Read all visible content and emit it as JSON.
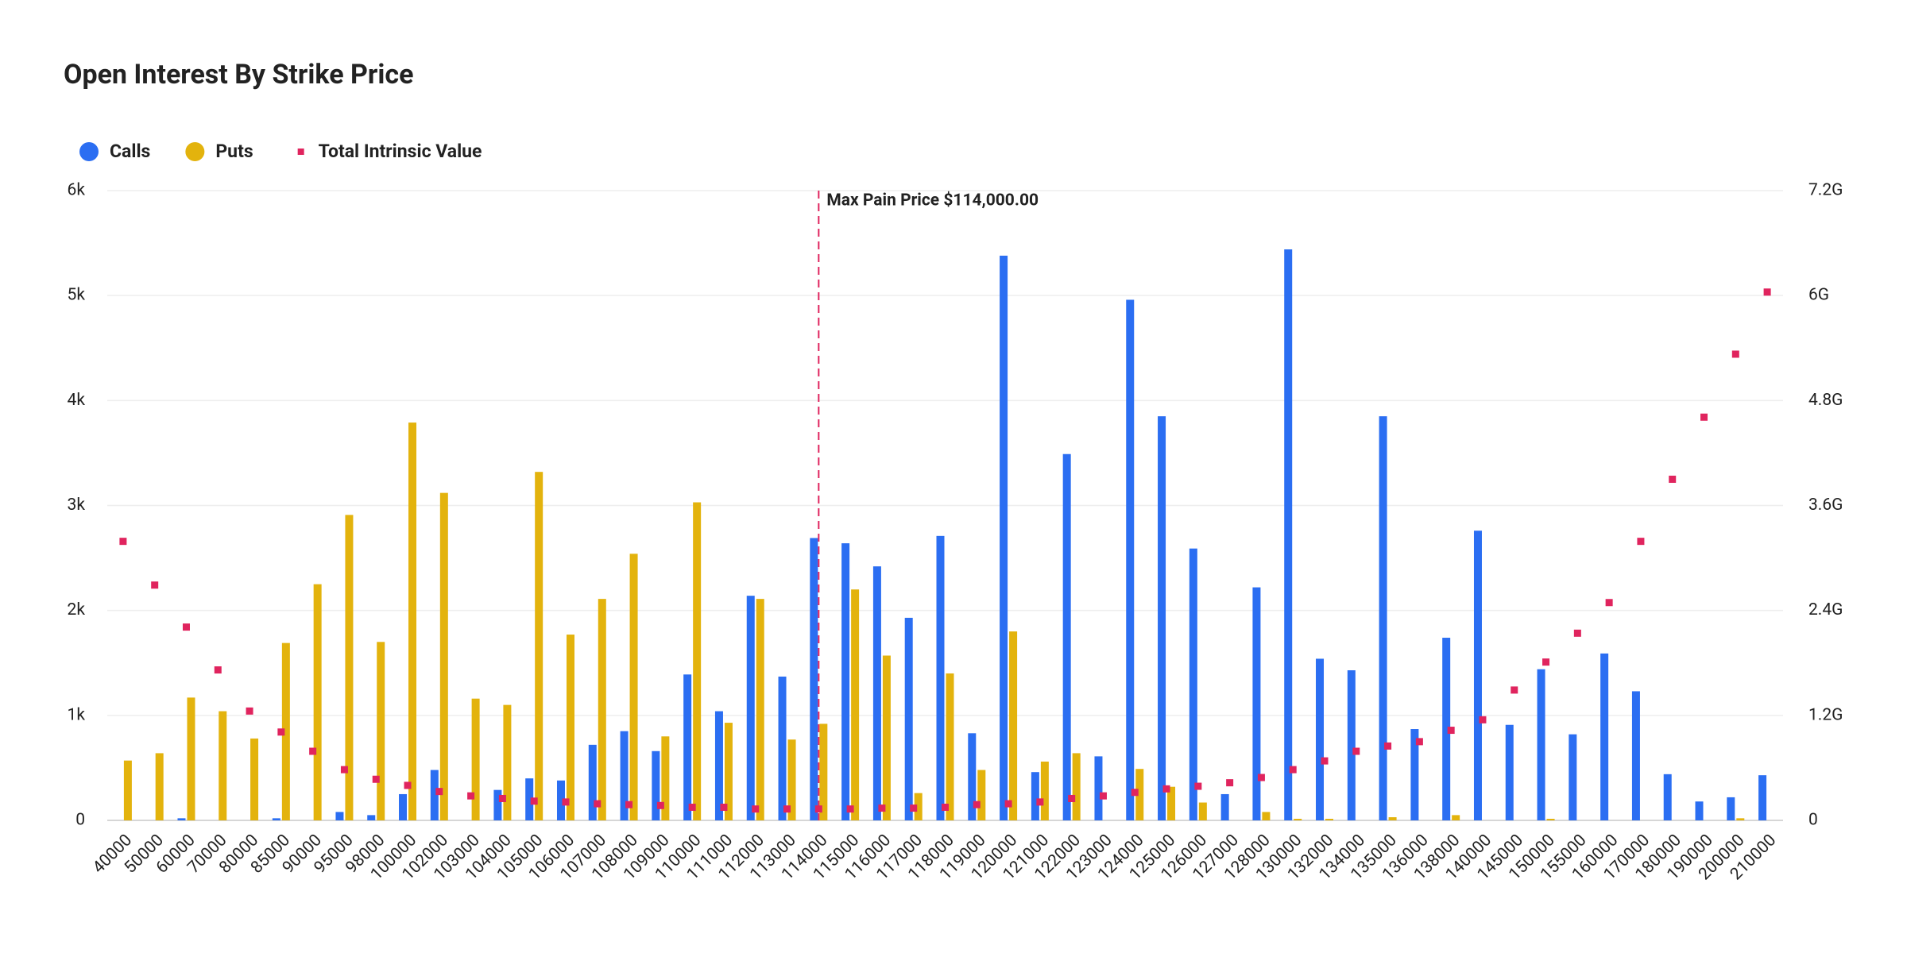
{
  "chart_data": {
    "type": "bar",
    "title": "Open Interest By Strike Price",
    "categories": [
      "40000",
      "50000",
      "60000",
      "70000",
      "80000",
      "85000",
      "90000",
      "95000",
      "98000",
      "100000",
      "102000",
      "103000",
      "104000",
      "105000",
      "106000",
      "107000",
      "108000",
      "109000",
      "110000",
      "111000",
      "112000",
      "113000",
      "114000",
      "115000",
      "116000",
      "117000",
      "118000",
      "119000",
      "120000",
      "121000",
      "122000",
      "123000",
      "124000",
      "125000",
      "126000",
      "127000",
      "128000",
      "130000",
      "132000",
      "134000",
      "135000",
      "136000",
      "138000",
      "140000",
      "145000",
      "150000",
      "155000",
      "160000",
      "170000",
      "180000",
      "190000",
      "200000",
      "210000"
    ],
    "series": [
      {
        "name": "Calls",
        "type": "bar",
        "color": "#2b6ef2",
        "values": [
          0,
          0,
          20,
          0,
          0,
          20,
          0,
          80,
          50,
          250,
          480,
          0,
          290,
          400,
          380,
          720,
          850,
          660,
          1390,
          1040,
          2140,
          1370,
          2690,
          2640,
          2420,
          1930,
          2710,
          830,
          5380,
          460,
          3490,
          610,
          4960,
          3850,
          2590,
          250,
          2220,
          5440,
          1540,
          1430,
          3850,
          870,
          1740,
          2760,
          910,
          1440,
          820,
          1590,
          1230,
          440,
          180,
          220,
          430
        ]
      },
      {
        "name": "Puts",
        "type": "bar",
        "color": "#e3b30d",
        "values": [
          570,
          640,
          1170,
          1040,
          780,
          1690,
          2250,
          2910,
          1700,
          3790,
          3120,
          1160,
          1100,
          3320,
          1770,
          2110,
          2540,
          800,
          3030,
          930,
          2110,
          770,
          920,
          2200,
          1570,
          260,
          1400,
          480,
          1800,
          560,
          640,
          0,
          490,
          320,
          170,
          0,
          80,
          15,
          15,
          0,
          30,
          0,
          50,
          0,
          0,
          15,
          0,
          0,
          0,
          0,
          0,
          20,
          0
        ]
      },
      {
        "name": "Total Intrinsic Value",
        "type": "scatter",
        "axis": "y2",
        "color": "#e0245e",
        "values": [
          3.19,
          2.69,
          2.21,
          1.72,
          1.25,
          1.01,
          0.79,
          0.58,
          0.47,
          0.4,
          0.33,
          0.28,
          0.25,
          0.22,
          0.21,
          0.19,
          0.18,
          0.17,
          0.15,
          0.15,
          0.13,
          0.13,
          0.13,
          0.13,
          0.14,
          0.14,
          0.15,
          0.18,
          0.19,
          0.21,
          0.25,
          0.28,
          0.32,
          0.36,
          0.39,
          0.43,
          0.49,
          0.58,
          0.68,
          0.79,
          0.85,
          0.9,
          1.03,
          1.15,
          1.49,
          1.81,
          2.14,
          2.49,
          3.19,
          3.9,
          4.61,
          5.33,
          6.04
        ]
      }
    ],
    "ylim": [
      0,
      6000
    ],
    "yticks": [
      0,
      {
        "value": 1000,
        "label": "1k"
      },
      {
        "value": 2000,
        "label": "2k"
      },
      {
        "value": 3000,
        "label": "3k"
      },
      {
        "value": 4000,
        "label": "4k"
      },
      {
        "value": 5000,
        "label": "5k"
      },
      {
        "value": 6000,
        "label": "6k"
      }
    ],
    "y2lim": [
      0,
      7.2
    ],
    "y2ticks": [
      0,
      {
        "value": 1.2,
        "label": "1.2G"
      },
      {
        "value": 2.4,
        "label": "2.4G"
      },
      {
        "value": 3.6,
        "label": "3.6G"
      },
      {
        "value": 4.8,
        "label": "4.8G"
      },
      {
        "value": 6,
        "label": "6G"
      },
      {
        "value": 7.2,
        "label": "7.2G"
      }
    ],
    "y2color": "#e0245e",
    "grid": true,
    "legend": "top-left",
    "annotation": {
      "text": "Max Pain Price $114,000.00",
      "x": "114000",
      "color": "#e0245e"
    }
  }
}
